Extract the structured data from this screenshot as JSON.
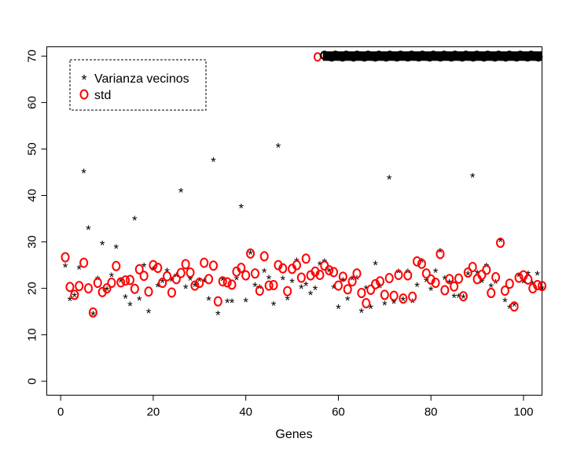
{
  "chart_data": {
    "type": "scatter",
    "title": "",
    "xlabel": "Genes",
    "ylabel": "",
    "xlim": [
      -3,
      104
    ],
    "ylim": [
      -3,
      72
    ],
    "xticks": [
      0,
      20,
      40,
      60,
      80,
      100
    ],
    "yticks": [
      0,
      10,
      20,
      30,
      40,
      50,
      60,
      70
    ],
    "grid": false,
    "legend_position": "top-left",
    "series": [
      {
        "name": "Varianza vecinos",
        "marker": "asterisk",
        "color": "#000000",
        "x": [
          1,
          2,
          3,
          4,
          5,
          6,
          7,
          8,
          9,
          10,
          11,
          12,
          13,
          14,
          15,
          16,
          17,
          18,
          19,
          20,
          21,
          22,
          23,
          24,
          25,
          26,
          27,
          28,
          29,
          30,
          31,
          32,
          33,
          34,
          35,
          36,
          37,
          38,
          39,
          40,
          41,
          42,
          43,
          44,
          45,
          46,
          47,
          48,
          49,
          50,
          51,
          52,
          53,
          54,
          55,
          56,
          57,
          58,
          59,
          60,
          61,
          62,
          63,
          64,
          65,
          66,
          67,
          68,
          69,
          70,
          71,
          72,
          73,
          74,
          75,
          76,
          77,
          78,
          79,
          80,
          81,
          82,
          83,
          84,
          85,
          86,
          87,
          88,
          89,
          90,
          91,
          92,
          93,
          94,
          95,
          96,
          97,
          98,
          99,
          100,
          101,
          102,
          103,
          104
        ],
        "y": [
          24.5,
          17.3,
          18.2,
          24.1,
          44.8,
          32.6,
          14.2,
          21.8,
          29.3,
          19.5,
          22.5,
          28.6,
          21.3,
          17.8,
          16.2,
          34.7,
          17.4,
          24.6,
          14.7,
          23.8,
          20.3,
          21.2,
          23.5,
          21.5,
          22.5,
          40.7,
          19.9,
          21.7,
          20.4,
          21.5,
          21.3,
          17.4,
          47.3,
          14.3,
          21.6,
          16.9,
          16.9,
          21.8,
          37.3,
          17.1,
          27.3,
          20.4,
          19.9,
          23.4,
          22.0,
          16.3,
          50.3,
          21.8,
          17.5,
          21.2,
          25.7,
          19.9,
          20.5,
          18.6,
          19.7,
          24.9,
          25.5,
          23.5,
          19.9,
          15.6,
          21.5,
          17.4,
          21.8,
          21.9,
          14.8,
          19.8,
          15.6,
          25.0,
          20.1,
          16.4,
          43.5,
          16.7,
          23.3,
          17.3,
          23.3,
          16.9,
          20.4,
          25.6,
          21.4,
          19.5,
          23.4,
          27.7,
          21.9,
          21.0,
          18.0,
          18.0,
          17.8,
          22.8,
          43.9,
          23.1,
          21.2,
          24.6,
          20.2,
          21.0,
          30.0,
          17.1,
          15.6,
          16.1,
          22.5,
          21.1,
          22.9,
          20.7,
          22.8,
          19.8
        ],
        "clipped_top_x_range": [
          57,
          104
        ],
        "clipped_top_value": 70
      },
      {
        "name": "std",
        "marker": "circle",
        "color": "#ff0000",
        "x": [
          1,
          2,
          3,
          4,
          5,
          6,
          7,
          8,
          9,
          10,
          11,
          12,
          13,
          14,
          15,
          16,
          17,
          18,
          19,
          20,
          21,
          22,
          23,
          24,
          25,
          26,
          27,
          28,
          29,
          30,
          31,
          32,
          33,
          34,
          35,
          36,
          37,
          38,
          39,
          40,
          41,
          42,
          43,
          44,
          45,
          46,
          47,
          48,
          49,
          50,
          51,
          52,
          53,
          54,
          55,
          56,
          57,
          58,
          59,
          60,
          61,
          62,
          63,
          64,
          65,
          66,
          67,
          68,
          69,
          70,
          71,
          72,
          73,
          74,
          75,
          76,
          77,
          78,
          79,
          80,
          81,
          82,
          83,
          84,
          85,
          86,
          87,
          88,
          89,
          90,
          91,
          92,
          93,
          94,
          95,
          96,
          97,
          98,
          99,
          100,
          101,
          102,
          103,
          104
        ],
        "y": [
          26.7,
          20.3,
          18.6,
          20.5,
          25.5,
          20.0,
          14.8,
          21.2,
          19.2,
          20.0,
          21.2,
          24.8,
          21.3,
          21.7,
          21.8,
          19.9,
          24.1,
          22.7,
          19.3,
          25.0,
          24.4,
          21.2,
          22.6,
          19.1,
          22.0,
          23.3,
          25.2,
          23.4,
          20.6,
          21.2,
          25.5,
          22.0,
          24.9,
          17.2,
          21.5,
          21.3,
          20.8,
          23.6,
          24.4,
          22.8,
          27.5,
          23.2,
          19.5,
          26.9,
          20.6,
          20.7,
          25.0,
          24.3,
          19.4,
          24.2,
          25.0,
          22.3,
          26.4,
          22.8,
          23.6,
          22.9,
          24.9,
          23.9,
          23.5,
          20.6,
          22.5,
          19.8,
          21.5,
          23.2,
          19.0,
          16.8,
          19.7,
          20.9,
          21.5,
          18.6,
          22.2,
          18.4,
          22.9,
          17.8,
          22.8,
          18.2,
          25.8,
          25.3,
          23.2,
          21.9,
          21.2,
          27.4,
          19.6,
          22.0,
          20.4,
          22.1,
          18.3,
          23.4,
          24.6,
          22.0,
          22.9,
          24.0,
          19.0,
          22.4,
          29.8,
          19.5,
          21.0,
          16.1,
          22.3,
          22.8,
          21.9,
          20.0,
          20.7,
          20.5
        ]
      }
    ],
    "legend": [
      {
        "label": "Varianza vecinos",
        "marker": "asterisk",
        "color": "#000000"
      },
      {
        "label": "std",
        "marker": "circle",
        "color": "#ff0000"
      }
    ]
  }
}
